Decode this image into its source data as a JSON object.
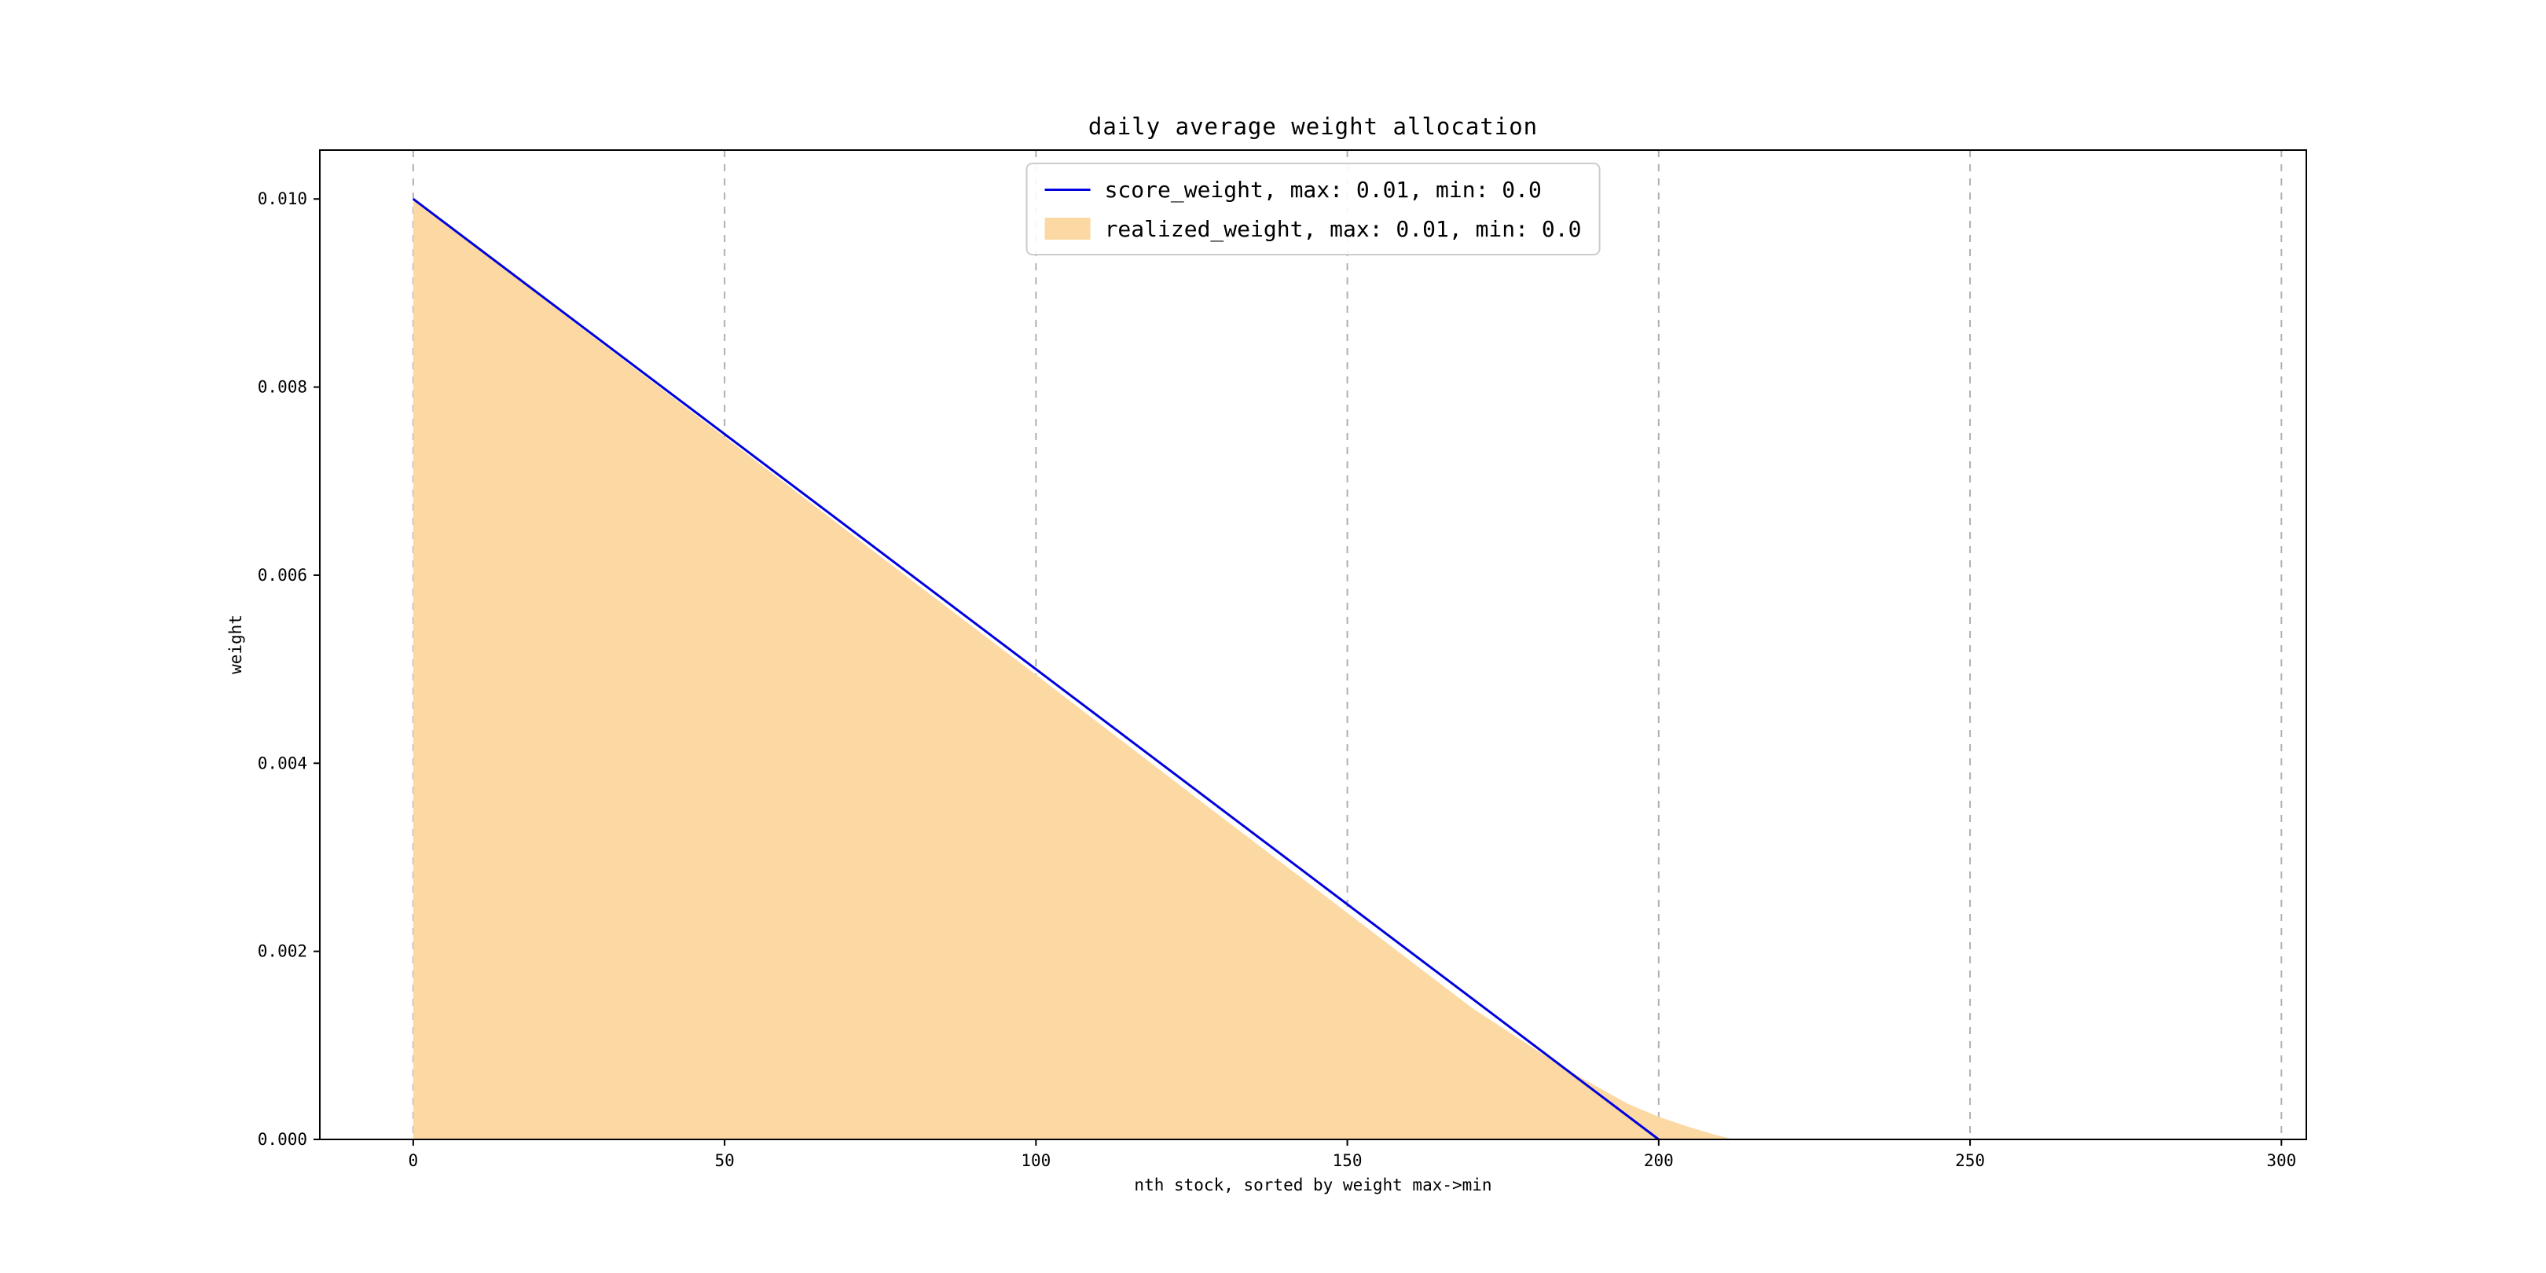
{
  "figure": {
    "background": "#ffffff"
  },
  "legend": {
    "position": "upper center",
    "items": [
      {
        "label": "score_weight, max: 0.01, min: 0.0",
        "swatch": "line",
        "color": "#0000dd"
      },
      {
        "label": "realized_weight, max: 0.01, min: 0.0",
        "swatch": "patch",
        "color": "#fcd9a2"
      }
    ]
  },
  "chart_data": {
    "type": "area",
    "title": "daily average weight allocation",
    "xlabel": "nth stock, sorted by weight max->min",
    "ylabel": "weight",
    "xlim": [
      -15,
      304
    ],
    "ylim": [
      0,
      0.01052
    ],
    "xticks": [
      0,
      50,
      100,
      150,
      200,
      250,
      300
    ],
    "xtick_labels": [
      "0",
      "50",
      "100",
      "150",
      "200",
      "250",
      "300"
    ],
    "yticks": [
      0,
      0.002,
      0.004,
      0.006,
      0.008,
      0.01
    ],
    "ytick_labels": [
      "0.000",
      "0.002",
      "0.004",
      "0.006",
      "0.008",
      "0.010"
    ],
    "grid": "vertical-dashed",
    "grid_color": "#b0b0b0",
    "series": [
      {
        "name": "score_weight",
        "type": "line",
        "color": "#0000dd",
        "max": 0.01,
        "min": 0.0,
        "points": [
          [
            0,
            0.01
          ],
          [
            200,
            0.0
          ]
        ]
      },
      {
        "name": "realized_weight",
        "type": "area",
        "color": "#fcd9a2",
        "max": 0.01,
        "min": 0.0,
        "points": [
          [
            0,
            0.01
          ],
          [
            25,
            0.00873
          ],
          [
            50,
            0.00747
          ],
          [
            75,
            0.0062
          ],
          [
            100,
            0.00494
          ],
          [
            125,
            0.00367
          ],
          [
            150,
            0.00241
          ],
          [
            170,
            0.0014
          ],
          [
            185,
            0.00075
          ],
          [
            195,
            0.00038
          ],
          [
            200,
            0.00024
          ],
          [
            205,
            0.00013
          ],
          [
            209,
            5e-05
          ],
          [
            212,
            0.0
          ]
        ]
      }
    ]
  }
}
